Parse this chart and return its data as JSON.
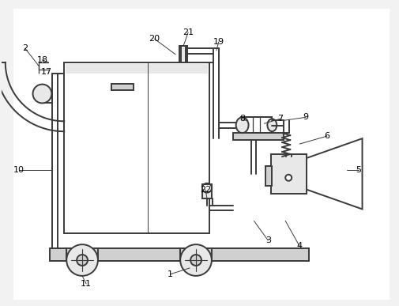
{
  "bg_color": "#f2f2f2",
  "line_color": "#3a3a3a",
  "fill_light": "#e8e8e8",
  "fill_mid": "#d0d0d0",
  "fill_dark": "#b0b0b0",
  "figsize": [
    5.06,
    3.87
  ],
  "dpi": 100,
  "labels": [
    [
      "1",
      230,
      345
    ],
    [
      "2",
      30,
      58
    ],
    [
      "3",
      340,
      300
    ],
    [
      "4",
      378,
      308
    ],
    [
      "5",
      455,
      210
    ],
    [
      "6",
      415,
      168
    ],
    [
      "7",
      355,
      148
    ],
    [
      "8",
      305,
      148
    ],
    [
      "9",
      388,
      145
    ],
    [
      "10",
      22,
      210
    ],
    [
      "11",
      110,
      358
    ],
    [
      "17",
      57,
      88
    ],
    [
      "18",
      52,
      72
    ],
    [
      "19",
      275,
      55
    ],
    [
      "20",
      195,
      50
    ],
    [
      "21",
      238,
      42
    ],
    [
      "22",
      260,
      238
    ]
  ]
}
